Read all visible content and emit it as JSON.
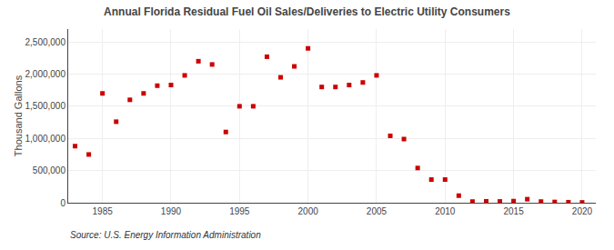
{
  "chart_data": {
    "type": "scatter",
    "title": "Annual Florida Residual Fuel Oil Sales/Deliveries to Electric Utility Consumers",
    "ylabel": "Thousand Gallons",
    "annotations": [
      "Source: U.S. Energy Information Administration"
    ],
    "x": [
      1983,
      1984,
      1985,
      1986,
      1987,
      1988,
      1989,
      1990,
      1991,
      1992,
      1993,
      1994,
      1995,
      1996,
      1997,
      1998,
      1999,
      2000,
      2001,
      2002,
      2003,
      2004,
      2005,
      2006,
      2007,
      2008,
      2009,
      2010,
      2011,
      2012,
      2013,
      2014,
      2015,
      2016,
      2017,
      2018,
      2019,
      2020
    ],
    "values": [
      880000,
      750000,
      1700000,
      1260000,
      1600000,
      1700000,
      1820000,
      1830000,
      1980000,
      2200000,
      2150000,
      1100000,
      1500000,
      1500000,
      2270000,
      1950000,
      2120000,
      2400000,
      1800000,
      1800000,
      1830000,
      1870000,
      1980000,
      1040000,
      990000,
      540000,
      360000,
      360000,
      110000,
      18000,
      22000,
      20000,
      25000,
      55000,
      18000,
      12000,
      8000,
      5000
    ],
    "color": "#cc0000",
    "marker": "square",
    "xlim": [
      1982.5,
      2021
    ],
    "ylim": [
      0,
      2700000
    ],
    "xticks": [
      1985,
      1990,
      1995,
      2000,
      2005,
      2010,
      2015,
      2020
    ],
    "yticks": [
      0,
      {
        "value": 500000,
        "label": "500,000"
      },
      {
        "value": 1000000,
        "label": "1,000,000"
      },
      {
        "value": 1500000,
        "label": "1,500,000"
      },
      {
        "value": 2000000,
        "label": "2,000,000"
      },
      {
        "value": 2500000,
        "label": "2,500,000"
      }
    ],
    "grid": true
  }
}
